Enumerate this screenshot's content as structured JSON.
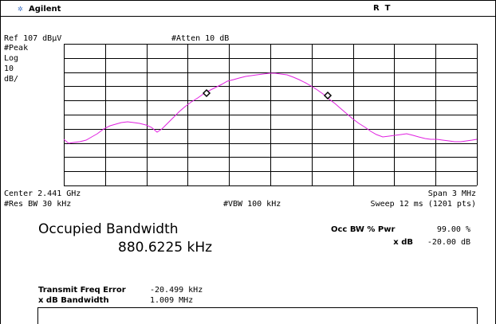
{
  "header": {
    "brand": "Agilent",
    "status": "R  T"
  },
  "display": {
    "ref_level": "Ref 107 dBµV",
    "attenuation": "#Atten 10 dB",
    "scale": [
      "#Peak",
      "Log",
      "10",
      "dB/"
    ],
    "center": "Center 2.441 GHz",
    "span": "Span 3 MHz",
    "res_bw": "#Res BW 30 kHz",
    "vbw": "#VBW 100 kHz",
    "sweep": "Sweep 12 ms (1201 pts)"
  },
  "measurement": {
    "title": "Occupied Bandwidth",
    "value": "880.6225 kHz",
    "occ_bw_label": "Occ BW % Pwr",
    "occ_bw_value": "99.00 %",
    "xdb_label": "x dB",
    "xdb_value": "-20.00 dB"
  },
  "results": {
    "rows": [
      [
        "Transmit Freq Error",
        "-20.499 kHz"
      ],
      [
        "x dB Bandwidth",
        "1.009 MHz"
      ]
    ]
  }
}
